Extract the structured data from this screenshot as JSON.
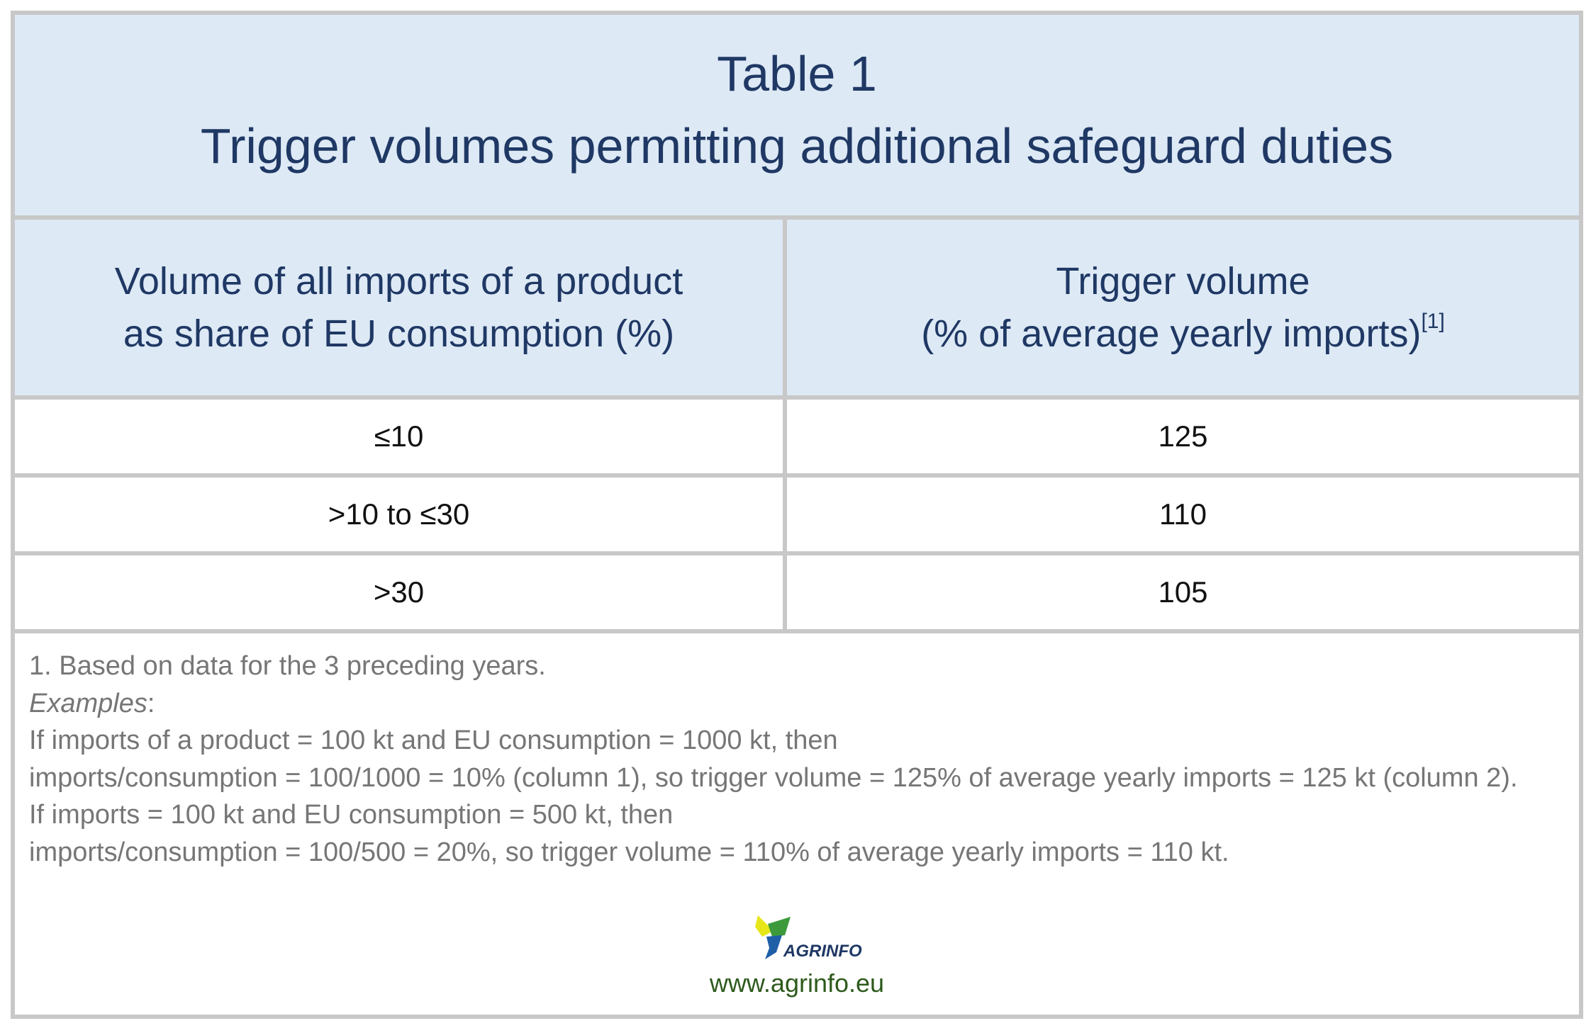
{
  "title": {
    "line1": "Table 1",
    "line2": "Trigger volumes permitting additional safeguard duties"
  },
  "header": {
    "col1_line1": "Volume of all imports of a product",
    "col1_line2": "as share of EU consumption (%)",
    "col2_line1": "Trigger volume",
    "col2_line2": "(% of average yearly imports)",
    "col2_footnote": "[1]"
  },
  "rows": [
    {
      "share": "≤10",
      "trigger": "125"
    },
    {
      "share": ">10 to ≤30",
      "trigger": "110"
    },
    {
      "share": ">30",
      "trigger": "105"
    }
  ],
  "notes": {
    "footnote": "1. Based on data for the 3 preceding years.",
    "examples_label": "Examples",
    "examples_colon": ":",
    "lines": [
      "If imports of a product = 100 kt and EU consumption = 1000 kt, then",
      "imports/consumption = 100/1000 = 10% (column 1), so trigger volume = 125% of average yearly imports = 125 kt (column 2).",
      "If imports = 100 kt and EU consumption = 500 kt, then",
      "imports/consumption = 100/500 = 20%, so trigger volume = 110% of average yearly imports = 110 kt."
    ]
  },
  "logo": {
    "text": "AGRINFO",
    "icon": "agrinfo-leaf-logo",
    "colors": {
      "yellow": "#e6e619",
      "green": "#3c9a3c",
      "blue": "#1f5fa8"
    }
  },
  "url": "www.agrinfo.eu",
  "colors": {
    "header_bg": "#dde9f5",
    "header_text": "#1f3864",
    "border": "#c8c8c8",
    "note_text": "#767676",
    "url_text": "#2e5a1c"
  }
}
